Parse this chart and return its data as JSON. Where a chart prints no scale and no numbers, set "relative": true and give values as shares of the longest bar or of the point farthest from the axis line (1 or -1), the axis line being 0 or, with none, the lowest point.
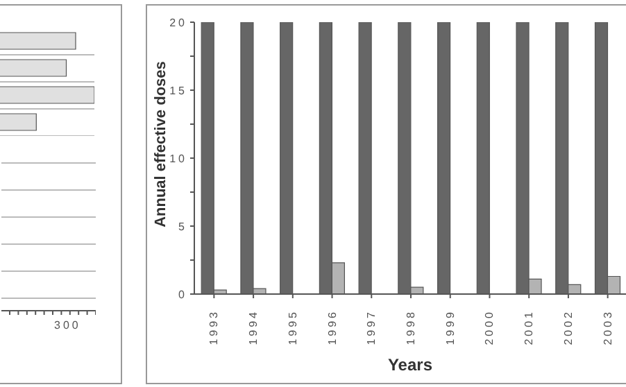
{
  "chart_data": [
    {
      "type": "bar",
      "orientation": "horizontal",
      "categories": [
        null,
        null,
        null,
        null
      ],
      "series": [
        {
          "color": "#e0e0e0",
          "values": [
            0.9,
            0.85,
            1,
            0.69
          ]
        }
      ],
      "relative": true,
      "annotations": [
        "300"
      ],
      "grid": "y"
    },
    {
      "type": "bar",
      "xlabel": "Years",
      "ylabel": "Annual effective doses",
      "categories": [
        "1993",
        "1994",
        "1995",
        "1996",
        "1997",
        "1998",
        "1999",
        "2000",
        "2001",
        "2002",
        "2003"
      ],
      "series": [
        {
          "color": "#666666",
          "values": [
            20,
            20,
            20,
            20,
            20,
            20,
            20,
            20,
            20,
            20,
            20
          ]
        },
        {
          "color": "#b3b3b3",
          "values": [
            0.3,
            0.4,
            0,
            2.3,
            0,
            0.5,
            0,
            0,
            1.1,
            0.7,
            1.3
          ]
        }
      ],
      "ylim": [
        0,
        20
      ],
      "yticks": [
        0,
        {
          "value": 2.5,
          "label": null
        },
        5,
        {
          "value": 7.5,
          "label": null
        },
        10,
        {
          "value": 12.5,
          "label": null
        },
        15,
        {
          "value": 17.5,
          "label": null
        },
        20
      ],
      "grid": false
    }
  ]
}
